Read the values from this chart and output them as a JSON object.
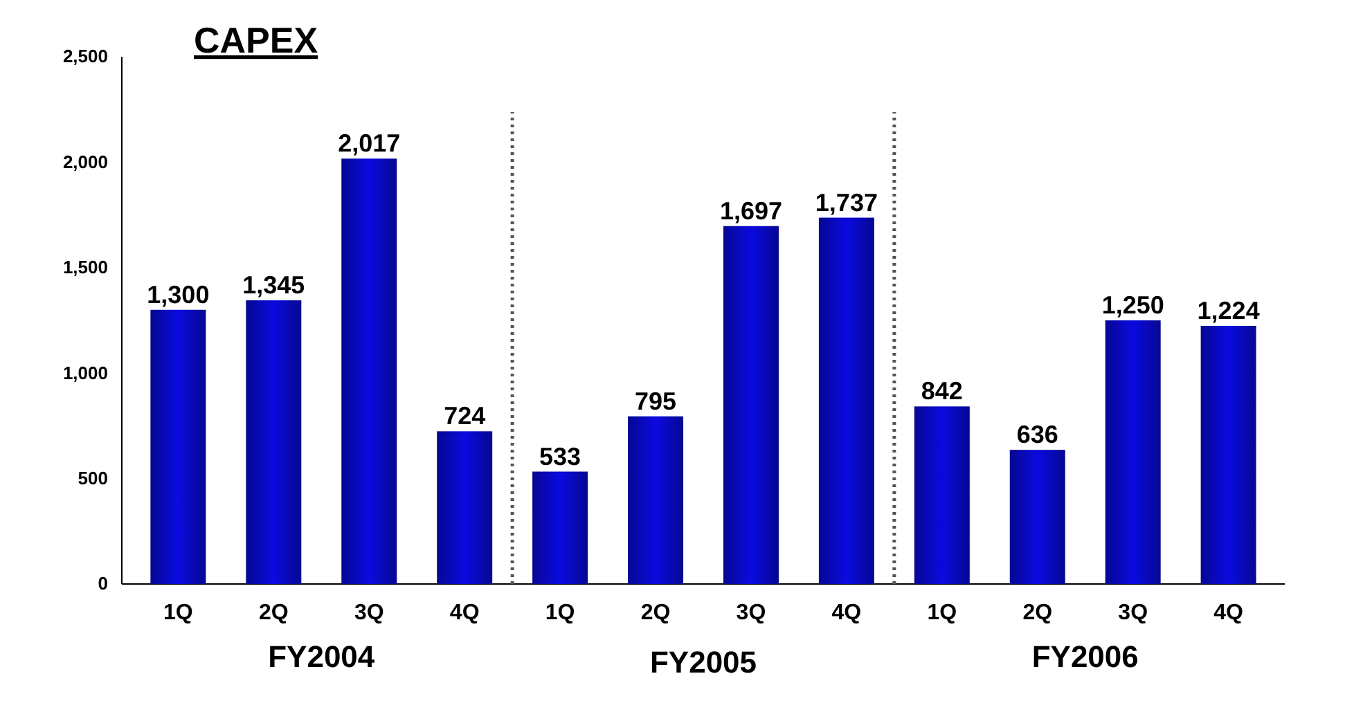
{
  "chart_data": {
    "type": "bar",
    "title": "CAPEX",
    "categories": [
      "1Q",
      "2Q",
      "3Q",
      "4Q",
      "1Q",
      "2Q",
      "3Q",
      "4Q",
      "1Q",
      "2Q",
      "3Q",
      "4Q"
    ],
    "values": [
      1300,
      1345,
      2017,
      724,
      533,
      795,
      1697,
      1737,
      842,
      636,
      1250,
      1224
    ],
    "color": "#0a0ae0",
    "ylim": [
      0,
      2500
    ],
    "yticks": [
      {
        "value": 0,
        "label": "0"
      },
      {
        "value": 500,
        "label": "500"
      },
      {
        "value": 1000,
        "label": "1,000"
      },
      {
        "value": 1500,
        "label": "1,500"
      },
      {
        "value": 2000,
        "label": "2,000"
      },
      {
        "value": 2500,
        "label": "2,500"
      }
    ],
    "value_labels": [
      "1,300",
      "1,345",
      "2,017",
      "724",
      "533",
      "795",
      "1,697",
      "1,737",
      "842",
      "636",
      "1,250",
      "1,224"
    ],
    "annotations": [
      "FY2004",
      "FY2005",
      "FY2006"
    ],
    "grid": false
  }
}
